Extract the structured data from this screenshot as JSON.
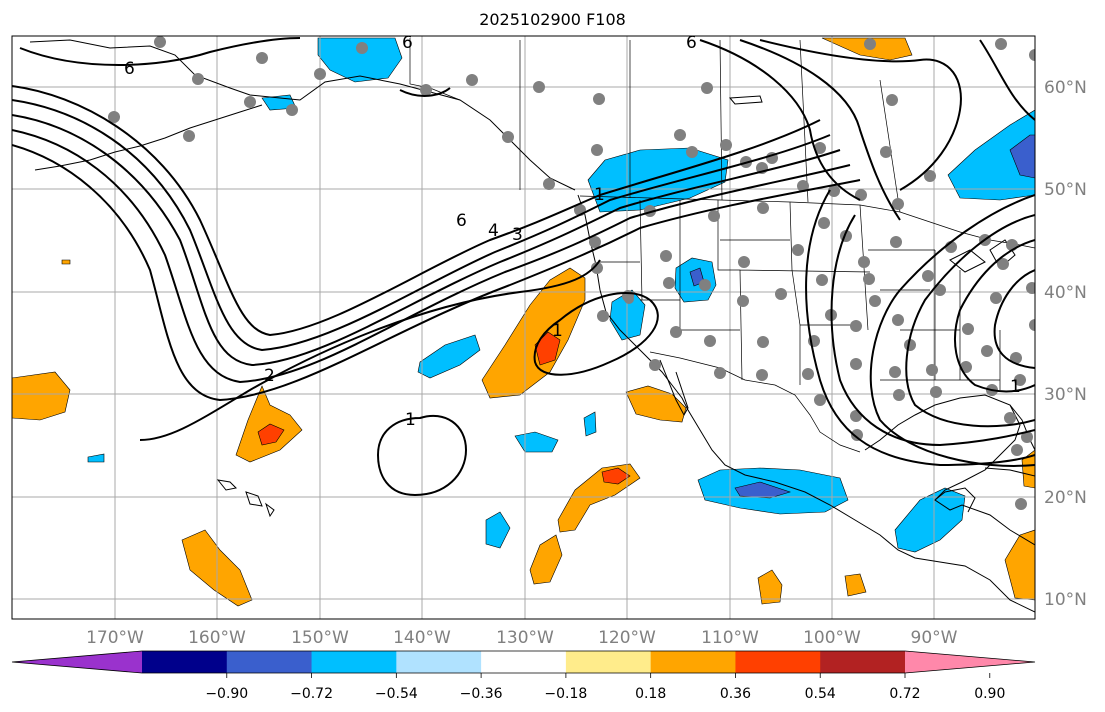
{
  "title": "2025102900 F108",
  "lat_labels": [
    "60°N",
    "50°N",
    "40°N",
    "30°N",
    "20°N",
    "10°N"
  ],
  "lon_labels": [
    "170°W",
    "160°W",
    "150°W",
    "140°W",
    "130°W",
    "120°W",
    "110°W",
    "100°W",
    "90°W"
  ],
  "colorbar": {
    "ticks": [
      "−0.90",
      "−0.72",
      "−0.54",
      "−0.36",
      "−0.18",
      "0.18",
      "0.36",
      "0.54",
      "0.72",
      "0.90"
    ],
    "colors": [
      "#9a32cd",
      "#00008b",
      "#3a5fcd",
      "#00bfff",
      "#b0e2ff",
      "#ffffff",
      "#ffec8b",
      "#ffa500",
      "#ff4000",
      "#b22222",
      "#ff88aa"
    ]
  },
  "contour_labels": [
    "6",
    "6",
    "6",
    "6",
    "4",
    "3",
    "2",
    "1",
    "1",
    "1",
    "1"
  ],
  "colors": {
    "land_line": "#000000",
    "grid": "#a0a0a0",
    "station": "#808080"
  }
}
